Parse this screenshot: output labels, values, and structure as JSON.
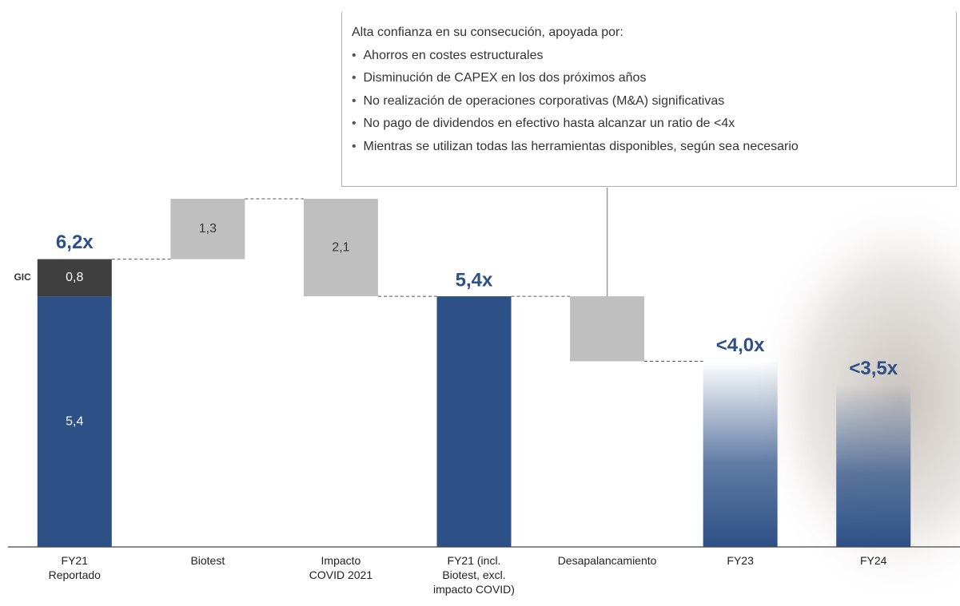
{
  "chart_data": {
    "type": "waterfall",
    "ylim": [
      0,
      7.5
    ],
    "steps": [
      {
        "category": "FY21\nReportado",
        "kind": "total",
        "total": 6.2,
        "total_label": "6,2x",
        "segments": [
          {
            "value": 5.4,
            "value_label": "5,4",
            "color": "#2d5086"
          },
          {
            "name": "GIC",
            "value": 0.8,
            "value_label": "0,8",
            "color": "#3f3f3f"
          }
        ]
      },
      {
        "category": "Biotest",
        "kind": "increase",
        "value": 1.3,
        "value_label": "1,3",
        "color": "#bfbfbf"
      },
      {
        "category": "Impacto\nCOVID 2021",
        "kind": "decrease",
        "value": 2.1,
        "value_label": "2,1",
        "color": "#bfbfbf"
      },
      {
        "category": "FY21 (incl.\nBiotest, excl.\nimpacto COVID)",
        "kind": "total",
        "value": 5.4,
        "value_label": "5,4x",
        "color": "#2d5086"
      },
      {
        "category": "Desapalancamiento",
        "kind": "decrease",
        "value": 1.4,
        "color": "#bfbfbf"
      },
      {
        "category": "FY23",
        "kind": "total",
        "value": 4.0,
        "value_label": "<4,0x",
        "color": "#2d5086",
        "faded": true
      },
      {
        "category": "FY24",
        "kind": "total",
        "value": 3.5,
        "value_label": "<3,5x",
        "color": "#2d5086",
        "faded": true
      }
    ],
    "callout": {
      "heading": "Alta confianza en su consecución, apoyada por:",
      "bullets": [
        "Ahorros en costes estructurales",
        "Disminución de CAPEX en los dos próximos años",
        "No realización de operaciones corporativas (M&A) significativas",
        "No pago de dividendos en efectivo hasta alcanzar un ratio de <4x",
        "Mientras se utilizan todas las herramientas disponibles, según sea necesario"
      ],
      "target_step": 4
    }
  }
}
